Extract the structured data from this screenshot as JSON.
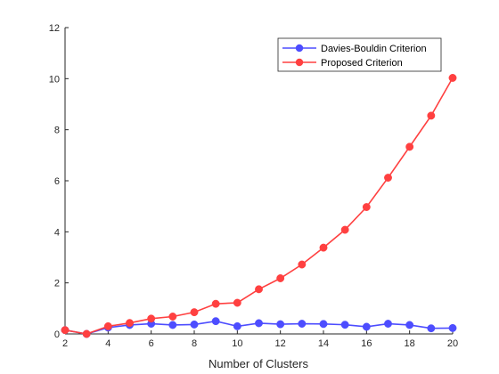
{
  "chart_data": {
    "type": "line",
    "title": "",
    "xlabel": "Number of Clusters",
    "ylabel": "",
    "xlim": [
      2,
      20
    ],
    "ylim": [
      0,
      12
    ],
    "xticks": [
      2,
      4,
      6,
      8,
      10,
      12,
      14,
      16,
      18,
      20
    ],
    "yticks": [
      0,
      2,
      4,
      6,
      8,
      10,
      12
    ],
    "grid": false,
    "legend_position": "top-right",
    "x": [
      2,
      3,
      4,
      5,
      6,
      7,
      8,
      9,
      10,
      11,
      12,
      13,
      14,
      15,
      16,
      17,
      18,
      19,
      20
    ],
    "series": [
      {
        "name": "Davies-Bouldin Criterion",
        "color": "#4d4dff",
        "marker": "circle",
        "values": [
          0.15,
          0.0,
          0.25,
          0.35,
          0.4,
          0.35,
          0.37,
          0.5,
          0.3,
          0.42,
          0.38,
          0.4,
          0.39,
          0.36,
          0.28,
          0.4,
          0.35,
          0.22,
          0.23
        ]
      },
      {
        "name": "Proposed Criterion",
        "color": "#ff4040",
        "marker": "circle",
        "values": [
          0.15,
          0.0,
          0.3,
          0.43,
          0.6,
          0.68,
          0.85,
          1.18,
          1.22,
          1.75,
          2.18,
          2.72,
          3.38,
          4.08,
          4.97,
          6.12,
          7.33,
          8.55,
          10.03
        ]
      }
    ]
  }
}
